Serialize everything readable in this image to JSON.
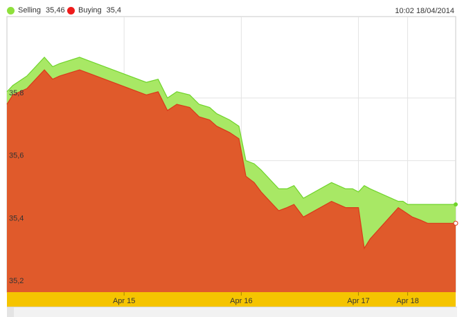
{
  "legend": {
    "selling": {
      "label": "Selling",
      "value": "35,46",
      "color": "#8ee03c"
    },
    "buying": {
      "label": "Buying",
      "value": "35,4",
      "color": "#ee1c1c"
    }
  },
  "timestamp": "10:02 18/04/2014",
  "chart_data": {
    "type": "area",
    "title": "",
    "xlabel": "",
    "ylabel": "",
    "x_range": [
      0,
      3.83
    ],
    "ylim": [
      35.18,
      36.06
    ],
    "y_ticks": [
      35.2,
      35.4,
      35.6,
      35.8
    ],
    "y_tick_labels": [
      "35,2",
      "35,4",
      "35,6",
      "35,8"
    ],
    "x_ticks": [
      {
        "label": "Apr 15",
        "x": 1.0
      },
      {
        "label": "Apr 16",
        "x": 2.0
      },
      {
        "label": "Apr 17",
        "x": 3.0
      },
      {
        "label": "Apr 18",
        "x": 3.42
      }
    ],
    "grid": true,
    "series": [
      {
        "name": "Selling",
        "color": "#a8e865",
        "line_color": "#6fd42a",
        "x": [
          0,
          0.05,
          0.17,
          0.32,
          0.39,
          0.45,
          0.62,
          1.19,
          1.29,
          1.37,
          1.45,
          1.56,
          1.64,
          1.73,
          1.79,
          1.9,
          1.98,
          2.04,
          2.11,
          2.17,
          2.32,
          2.39,
          2.45,
          2.53,
          2.77,
          2.89,
          2.95,
          3.0,
          3.05,
          3.1,
          3.34,
          3.38,
          3.42,
          3.46,
          3.53,
          3.59,
          3.7,
          3.83
        ],
        "y": [
          35.82,
          35.84,
          35.87,
          35.93,
          35.9,
          35.91,
          35.93,
          35.85,
          35.86,
          35.8,
          35.82,
          35.81,
          35.78,
          35.77,
          35.75,
          35.73,
          35.71,
          35.6,
          35.59,
          35.57,
          35.51,
          35.51,
          35.52,
          35.48,
          35.53,
          35.51,
          35.51,
          35.5,
          35.52,
          35.51,
          35.47,
          35.47,
          35.46,
          35.46,
          35.46,
          35.46,
          35.46,
          35.46
        ]
      },
      {
        "name": "Buying",
        "color": "#e05a2b",
        "line_color": "#d9391a",
        "x": [
          0,
          0.05,
          0.17,
          0.32,
          0.39,
          0.45,
          0.62,
          1.19,
          1.29,
          1.37,
          1.45,
          1.56,
          1.64,
          1.73,
          1.79,
          1.9,
          1.98,
          2.04,
          2.11,
          2.17,
          2.32,
          2.39,
          2.45,
          2.53,
          2.77,
          2.89,
          2.95,
          3.0,
          3.05,
          3.1,
          3.34,
          3.38,
          3.42,
          3.46,
          3.53,
          3.59,
          3.7,
          3.83
        ],
        "y": [
          35.78,
          35.81,
          35.83,
          35.89,
          35.86,
          35.87,
          35.89,
          35.81,
          35.82,
          35.76,
          35.78,
          35.77,
          35.74,
          35.73,
          35.71,
          35.69,
          35.67,
          35.55,
          35.53,
          35.5,
          35.44,
          35.45,
          35.46,
          35.42,
          35.47,
          35.45,
          35.45,
          35.45,
          35.32,
          35.35,
          35.45,
          35.44,
          35.43,
          35.42,
          35.41,
          35.4,
          35.4,
          35.4
        ]
      }
    ]
  }
}
